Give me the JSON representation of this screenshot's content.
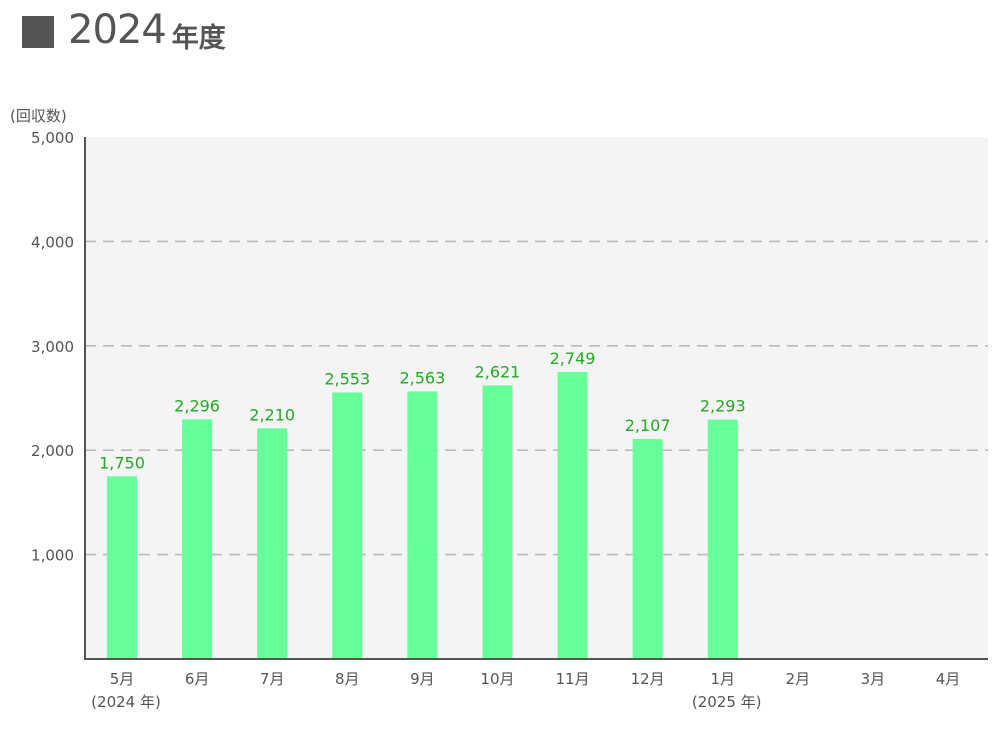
{
  "header": {
    "year": "2024",
    "suffix": "年度"
  },
  "chart_data": {
    "type": "bar",
    "ylabel": "(回収数)",
    "ylim": [
      0,
      5000
    ],
    "yticks": [
      1000,
      2000,
      3000,
      4000,
      5000
    ],
    "ytick_labels": [
      "1,000",
      "2,000",
      "3,000",
      "4,000",
      "5,000"
    ],
    "grid": "dashed horizontal",
    "categories": [
      {
        "label": "5月",
        "sublabel": "(2024 年)"
      },
      {
        "label": "6月",
        "sublabel": ""
      },
      {
        "label": "7月",
        "sublabel": ""
      },
      {
        "label": "8月",
        "sublabel": ""
      },
      {
        "label": "9月",
        "sublabel": ""
      },
      {
        "label": "10月",
        "sublabel": ""
      },
      {
        "label": "11月",
        "sublabel": ""
      },
      {
        "label": "12月",
        "sublabel": ""
      },
      {
        "label": "1月",
        "sublabel": "(2025 年)"
      },
      {
        "label": "2月",
        "sublabel": ""
      },
      {
        "label": "3月",
        "sublabel": ""
      },
      {
        "label": "4月",
        "sublabel": ""
      }
    ],
    "values": [
      1750,
      2296,
      2210,
      2553,
      2563,
      2621,
      2749,
      2107,
      2293,
      null,
      null,
      null
    ],
    "value_labels": [
      "1,750",
      "2,296",
      "2,210",
      "2,553",
      "2,563",
      "2,621",
      "2,749",
      "2,107",
      "2,293",
      "",
      "",
      ""
    ],
    "colors": {
      "bar": "#66ff99",
      "value_label": "#22aa22",
      "plot_background": "#f4f4f4",
      "grid": "#bbbbbb",
      "axis": "#555555",
      "text": "#555555"
    }
  }
}
